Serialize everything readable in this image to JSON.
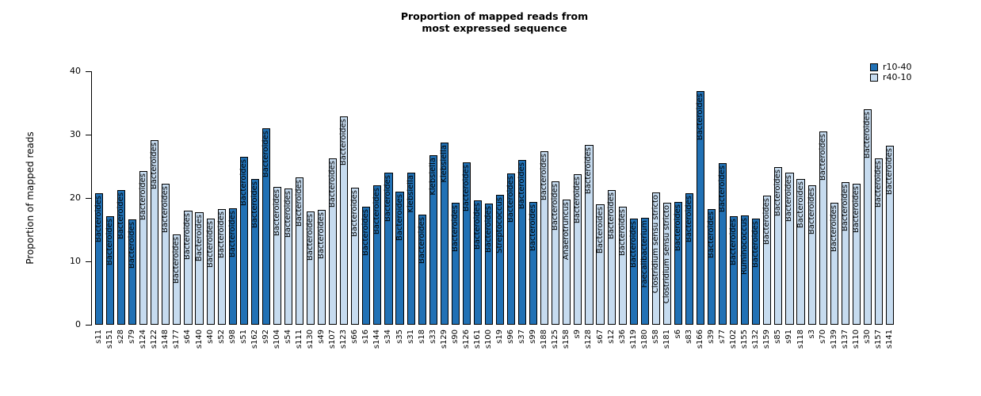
{
  "title": {
    "line1": "Proportion of mapped reads from",
    "line2": "most expressed sequence"
  },
  "y_axis": {
    "label": "Proportion of mapped reads",
    "ticks": [
      0,
      10,
      20,
      30,
      40
    ]
  },
  "legend": [
    {
      "label": "r10-40",
      "color": "#2171b5"
    },
    {
      "label": "r40-10",
      "color": "#c6dbef"
    }
  ],
  "colors": {
    "dark": "#2171b5",
    "light": "#c6dbef",
    "bar_border": "#000000"
  },
  "chart_data": {
    "type": "bar",
    "title": "Proportion of mapped reads from most expressed sequence",
    "xlabel": "",
    "ylabel": "Proportion of mapped reads",
    "ylim": [
      0,
      40
    ],
    "grid": false,
    "legend_position": "top-right",
    "series_names": [
      "r10-40",
      "r40-10"
    ],
    "bars": [
      {
        "sample": "s11",
        "value": 20.7,
        "group": "r10-40",
        "taxon": "Bacteroides"
      },
      {
        "sample": "s151",
        "value": 17.1,
        "group": "r10-40",
        "taxon": "Bacteroides"
      },
      {
        "sample": "s28",
        "value": 21.2,
        "group": "r10-40",
        "taxon": "Bacteroides"
      },
      {
        "sample": "s79",
        "value": 16.6,
        "group": "r10-40",
        "taxon": "Bacteroides"
      },
      {
        "sample": "s124",
        "value": 24.2,
        "group": "r40-10",
        "taxon": "Bacteroides"
      },
      {
        "sample": "s122",
        "value": 29.1,
        "group": "r40-10",
        "taxon": "Bacteroides"
      },
      {
        "sample": "s148",
        "value": 22.3,
        "group": "r40-10",
        "taxon": "Bacteroides"
      },
      {
        "sample": "s177",
        "value": 14.2,
        "group": "r40-10",
        "taxon": "Bacteroides"
      },
      {
        "sample": "s64",
        "value": 18.0,
        "group": "r40-10",
        "taxon": "Bacteroides"
      },
      {
        "sample": "s140",
        "value": 17.8,
        "group": "r40-10",
        "taxon": "Bacteroides"
      },
      {
        "sample": "s40",
        "value": 16.7,
        "group": "r40-10",
        "taxon": "Bacteroides"
      },
      {
        "sample": "s52",
        "value": 18.2,
        "group": "r40-10",
        "taxon": "Bacteroides"
      },
      {
        "sample": "s98",
        "value": 18.4,
        "group": "r10-40",
        "taxon": "Bacteroides"
      },
      {
        "sample": "s51",
        "value": 26.5,
        "group": "r10-40",
        "taxon": "Bacteroides"
      },
      {
        "sample": "s162",
        "value": 23.0,
        "group": "r10-40",
        "taxon": "Bacteroides"
      },
      {
        "sample": "s92",
        "value": 31.0,
        "group": "r10-40",
        "taxon": "Bacteroides"
      },
      {
        "sample": "s104",
        "value": 21.8,
        "group": "r40-10",
        "taxon": "Bacteroides"
      },
      {
        "sample": "s54",
        "value": 21.5,
        "group": "r40-10",
        "taxon": "Bacteroides"
      },
      {
        "sample": "s111",
        "value": 23.3,
        "group": "r40-10",
        "taxon": "Bacteroides"
      },
      {
        "sample": "s130",
        "value": 17.9,
        "group": "r40-10",
        "taxon": "Bacteroides"
      },
      {
        "sample": "s49",
        "value": 18.1,
        "group": "r40-10",
        "taxon": "Bacteroides"
      },
      {
        "sample": "s107",
        "value": 26.2,
        "group": "r40-10",
        "taxon": "Bacteroides"
      },
      {
        "sample": "s123",
        "value": 32.9,
        "group": "r40-10",
        "taxon": "Bacteroides"
      },
      {
        "sample": "s66",
        "value": 21.6,
        "group": "r40-10",
        "taxon": "Bacteroides"
      },
      {
        "sample": "s16",
        "value": 18.6,
        "group": "r10-40",
        "taxon": "Bacteroides"
      },
      {
        "sample": "s144",
        "value": 22.0,
        "group": "r10-40",
        "taxon": "Bacteroides"
      },
      {
        "sample": "s34",
        "value": 24.0,
        "group": "r10-40",
        "taxon": "Bacteroides"
      },
      {
        "sample": "s35",
        "value": 21.0,
        "group": "r10-40",
        "taxon": "Bacteroides"
      },
      {
        "sample": "s31",
        "value": 24.0,
        "group": "r10-40",
        "taxon": "Klebsiella"
      },
      {
        "sample": "s18",
        "value": 17.4,
        "group": "r10-40",
        "taxon": "Bacteroides"
      },
      {
        "sample": "s33",
        "value": 26.8,
        "group": "r10-40",
        "taxon": "Klebsiella"
      },
      {
        "sample": "s129",
        "value": 28.7,
        "group": "r10-40",
        "taxon": "Klebsiella"
      },
      {
        "sample": "s90",
        "value": 19.2,
        "group": "r10-40",
        "taxon": "Bacteroides"
      },
      {
        "sample": "s126",
        "value": 25.6,
        "group": "r10-40",
        "taxon": "Bacteroides"
      },
      {
        "sample": "s161",
        "value": 19.6,
        "group": "r10-40",
        "taxon": "Bacteroides"
      },
      {
        "sample": "s100",
        "value": 19.1,
        "group": "r10-40",
        "taxon": "Bacteroides"
      },
      {
        "sample": "s19",
        "value": 20.5,
        "group": "r10-40",
        "taxon": "Streptococcus"
      },
      {
        "sample": "s96",
        "value": 23.9,
        "group": "r10-40",
        "taxon": "Bacteroides"
      },
      {
        "sample": "s37",
        "value": 26.0,
        "group": "r10-40",
        "taxon": "Bacteroides"
      },
      {
        "sample": "s99",
        "value": 19.4,
        "group": "r10-40",
        "taxon": "Bacteroides"
      },
      {
        "sample": "s188",
        "value": 27.4,
        "group": "r40-10",
        "taxon": "Bacteroides"
      },
      {
        "sample": "s125",
        "value": 22.6,
        "group": "r40-10",
        "taxon": "Bacteroides"
      },
      {
        "sample": "s158",
        "value": 19.8,
        "group": "r40-10",
        "taxon": "Anaerotruncus"
      },
      {
        "sample": "s9",
        "value": 23.8,
        "group": "r40-10",
        "taxon": "Bacteroides"
      },
      {
        "sample": "s128",
        "value": 28.4,
        "group": "r40-10",
        "taxon": "Bacteroides"
      },
      {
        "sample": "s67",
        "value": 19.0,
        "group": "r40-10",
        "taxon": "Bacteroides"
      },
      {
        "sample": "s12",
        "value": 21.2,
        "group": "r40-10",
        "taxon": "Bacteroides"
      },
      {
        "sample": "s36",
        "value": 18.6,
        "group": "r40-10",
        "taxon": "Bacteroides"
      },
      {
        "sample": "s119",
        "value": 16.8,
        "group": "r10-40",
        "taxon": "Bacteroides"
      },
      {
        "sample": "s180",
        "value": 16.9,
        "group": "r10-40",
        "taxon": "Faecalibacterium"
      },
      {
        "sample": "s58",
        "value": 20.9,
        "group": "r40-10",
        "taxon": "Clostridium sensu stricto"
      },
      {
        "sample": "s181",
        "value": 19.2,
        "group": "r40-10",
        "taxon": "Clostridium sensu stricto"
      },
      {
        "sample": "s6",
        "value": 19.4,
        "group": "r10-40",
        "taxon": "Bacteroides"
      },
      {
        "sample": "s83",
        "value": 20.8,
        "group": "r10-40",
        "taxon": "Bacteroides"
      },
      {
        "sample": "s166",
        "value": 36.9,
        "group": "r10-40",
        "taxon": "Bacteroides"
      },
      {
        "sample": "s39",
        "value": 18.3,
        "group": "r10-40",
        "taxon": "Bacteroides"
      },
      {
        "sample": "s77",
        "value": 25.5,
        "group": "r10-40",
        "taxon": "Bacteroides"
      },
      {
        "sample": "s102",
        "value": 17.1,
        "group": "r10-40",
        "taxon": "Bacteroides"
      },
      {
        "sample": "s155",
        "value": 17.2,
        "group": "r10-40",
        "taxon": "Ruminococcus"
      },
      {
        "sample": "s132",
        "value": 16.8,
        "group": "r10-40",
        "taxon": "Bacteroides"
      },
      {
        "sample": "s159",
        "value": 20.4,
        "group": "r40-10",
        "taxon": "Bacteroides"
      },
      {
        "sample": "s85",
        "value": 24.9,
        "group": "r40-10",
        "taxon": "Bacteroides"
      },
      {
        "sample": "s91",
        "value": 24.0,
        "group": "r40-10",
        "taxon": "Bacteroides"
      },
      {
        "sample": "s118",
        "value": 23.0,
        "group": "r40-10",
        "taxon": "Bacteroides"
      },
      {
        "sample": "s3",
        "value": 22.0,
        "group": "r40-10",
        "taxon": "Bacteroides"
      },
      {
        "sample": "s70",
        "value": 30.5,
        "group": "r40-10",
        "taxon": "Bacteroides"
      },
      {
        "sample": "s139",
        "value": 19.2,
        "group": "r40-10",
        "taxon": "Bacteroides"
      },
      {
        "sample": "s137",
        "value": 22.5,
        "group": "r40-10",
        "taxon": "Bacteroides"
      },
      {
        "sample": "s110",
        "value": 22.3,
        "group": "r40-10",
        "taxon": "Bacteroides"
      },
      {
        "sample": "s30",
        "value": 34.0,
        "group": "r40-10",
        "taxon": "Bacteroides"
      },
      {
        "sample": "s157",
        "value": 26.3,
        "group": "r40-10",
        "taxon": "Bacteroides"
      },
      {
        "sample": "s141",
        "value": 28.3,
        "group": "r40-10",
        "taxon": "Bacteroides"
      }
    ]
  }
}
